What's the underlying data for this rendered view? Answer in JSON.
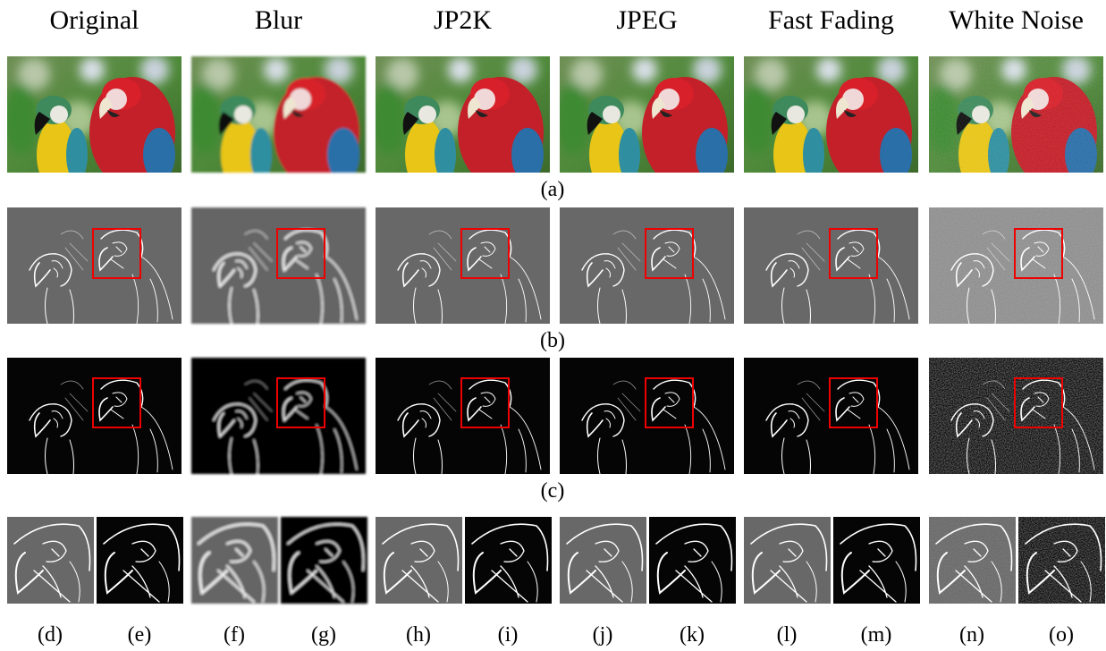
{
  "headers": [
    "Original",
    "Blur",
    "JP2K",
    "JPEG",
    "Fast Fading",
    "White Noise"
  ],
  "row_labels": [
    "(a)",
    "(b)",
    "(c)"
  ],
  "crop_labels": [
    "(d)",
    "(e)",
    "(f)",
    "(g)",
    "(h)",
    "(i)",
    "(j)",
    "(k)",
    "(l)",
    "(m)",
    "(n)",
    "(o)"
  ]
}
